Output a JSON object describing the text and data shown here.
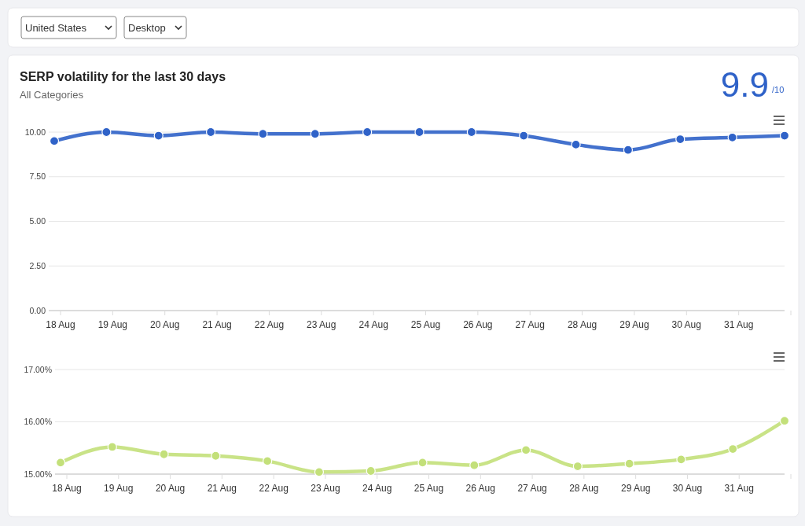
{
  "chart_data": [
    {
      "type": "line",
      "title": "SERP volatility for the last 30 days",
      "subtitle": "All Categories",
      "annotations": [
        "United States",
        "Desktop",
        "9.9",
        "/10"
      ],
      "categories": [
        "18 Aug",
        "19 Aug",
        "20 Aug",
        "21 Aug",
        "22 Aug",
        "23 Aug",
        "24 Aug",
        "25 Aug",
        "26 Aug",
        "27 Aug",
        "28 Aug",
        "29 Aug",
        "30 Aug",
        "31 Aug",
        null
      ],
      "series": [
        {
          "color": "#2f62c8",
          "values": [
            9.5,
            10.0,
            9.8,
            10.0,
            9.9,
            9.9,
            10.0,
            10.0,
            10.0,
            9.8,
            9.3,
            9.0,
            9.6,
            9.7,
            9.8
          ]
        }
      ],
      "ylim": [
        0,
        10
      ],
      "yticks": [
        {
          "value": 0,
          "label": "0.00"
        },
        {
          "value": 2.5,
          "label": "2.50"
        },
        {
          "value": 5,
          "label": "5.00"
        },
        {
          "value": 7.5,
          "label": "7.50"
        },
        {
          "value": 10,
          "label": "10.00"
        }
      ],
      "grid": "y",
      "marker": "circle",
      "line_style": "solid"
    },
    {
      "type": "line",
      "categories": [
        "18 Aug",
        "19 Aug",
        "20 Aug",
        "21 Aug",
        "22 Aug",
        "23 Aug",
        "24 Aug",
        "25 Aug",
        "26 Aug",
        "27 Aug",
        "28 Aug",
        "29 Aug",
        "30 Aug",
        "31 Aug",
        null
      ],
      "series": [
        {
          "color": "#c3e07a",
          "values": [
            15.22,
            15.52,
            15.38,
            15.35,
            15.25,
            15.04,
            15.06,
            15.22,
            15.17,
            15.46,
            15.15,
            15.2,
            15.28,
            15.48,
            16.02
          ]
        }
      ],
      "ylim": [
        15,
        17
      ],
      "yticks": [
        {
          "value": 15,
          "label": "15.00%"
        },
        {
          "value": 16,
          "label": "16.00%"
        },
        {
          "value": 17,
          "label": "17.00%"
        }
      ],
      "grid": "y",
      "marker": "circle",
      "line_style": "solid"
    }
  ]
}
